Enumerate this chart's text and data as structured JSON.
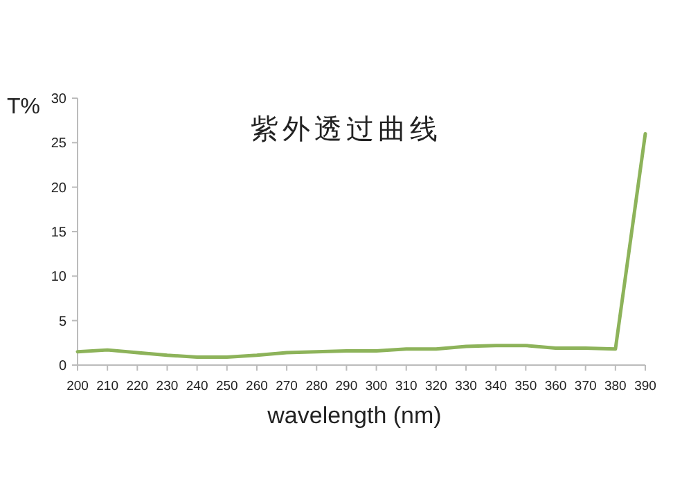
{
  "chart_data": {
    "type": "line",
    "title": "紫外透过曲线",
    "xlabel": "wavelength (nm)",
    "ylabel": "T%",
    "x": [
      200,
      210,
      220,
      230,
      240,
      250,
      260,
      270,
      280,
      290,
      300,
      310,
      320,
      330,
      340,
      350,
      360,
      370,
      380,
      390
    ],
    "series": [
      {
        "color": "#8db35a",
        "values": [
          1.5,
          1.7,
          1.4,
          1.1,
          0.9,
          0.9,
          1.1,
          1.4,
          1.5,
          1.6,
          1.6,
          1.8,
          1.8,
          2.1,
          2.2,
          2.2,
          1.9,
          1.9,
          1.8,
          26
        ]
      }
    ],
    "xlim": [
      200,
      390
    ],
    "xticks": [
      200,
      210,
      220,
      230,
      240,
      250,
      260,
      270,
      280,
      290,
      300,
      310,
      320,
      330,
      340,
      350,
      360,
      370,
      380,
      390
    ],
    "ylim": [
      0,
      30
    ],
    "yticks": [
      0,
      5,
      10,
      15,
      20,
      25,
      30
    ],
    "marker": "none",
    "line_style": "solid"
  }
}
